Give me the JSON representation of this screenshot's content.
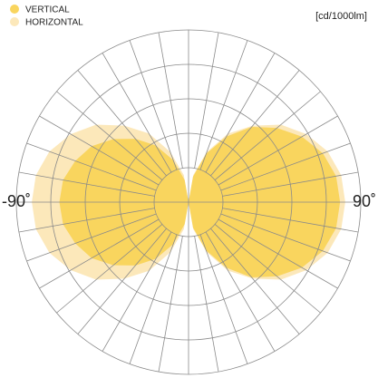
{
  "chart_data": {
    "type": "polar",
    "unit_label": "[cd/1000lm]",
    "x": [
      -180,
      -170,
      -160,
      -150,
      -140,
      -130,
      -120,
      -110,
      -100,
      -90,
      -80,
      -70,
      -60,
      -50,
      -40,
      -30,
      -20,
      -10,
      0,
      10,
      20,
      30,
      40,
      50,
      60,
      70,
      80,
      90,
      100,
      110,
      120,
      130,
      140,
      150,
      160,
      170,
      180
    ],
    "series": [
      {
        "name": "HORIZONTAL",
        "color": "#fce8ba",
        "values": [
          0,
          16,
          31,
          46,
          58,
          70,
          79,
          86,
          90,
          91,
          90,
          86,
          79,
          70,
          58,
          46,
          31,
          16,
          0,
          16,
          31,
          46,
          58,
          70,
          79,
          86,
          90,
          91,
          90,
          86,
          79,
          70,
          58,
          46,
          31,
          16,
          0
        ]
      },
      {
        "name": "VERTICAL",
        "color": "#f9d55e",
        "values": [
          0,
          13,
          26,
          38,
          48,
          57,
          65,
          70,
          74,
          75,
          74,
          70,
          65,
          57,
          48,
          38,
          26,
          13,
          0,
          15,
          30,
          44,
          57,
          67,
          76,
          83,
          87,
          88,
          87,
          83,
          76,
          67,
          57,
          44,
          30,
          15,
          0
        ]
      }
    ],
    "rlim": [
      0,
      100
    ],
    "rticks": [
      20,
      40,
      60,
      80,
      100
    ],
    "grid_angles": [
      -170,
      -160,
      -150,
      -140,
      -130,
      -120,
      -110,
      -100,
      -90,
      -80,
      -70,
      -60,
      -50,
      -40,
      -30,
      -20,
      -10,
      0,
      10,
      20,
      30,
      40,
      50,
      60,
      70,
      80,
      90,
      100,
      110,
      120,
      130,
      140,
      150,
      160,
      170,
      180
    ],
    "xticks": [
      {
        "value": -90,
        "label": "-90˚"
      },
      {
        "value": 90,
        "label": "90˚"
      }
    ],
    "grid": true
  }
}
